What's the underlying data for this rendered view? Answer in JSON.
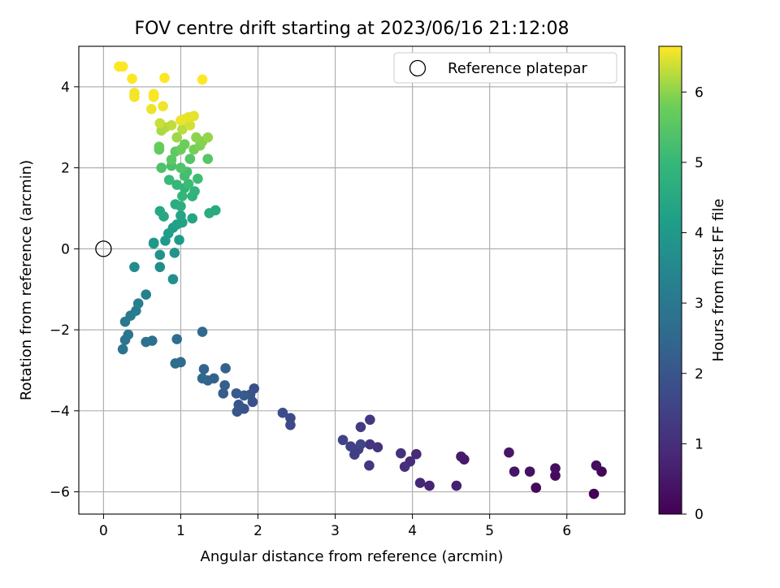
{
  "chart_data": {
    "type": "scatter",
    "title": "FOV centre drift starting at 2023/06/16 21:12:08",
    "xlabel": "Angular distance from reference (arcmin)",
    "ylabel": "Rotation from reference (arcmin)",
    "xlim": [
      -0.32,
      6.75
    ],
    "ylim": [
      -6.55,
      5.0
    ],
    "xticks": [
      0,
      1,
      2,
      3,
      4,
      5,
      6
    ],
    "yticks": [
      -6,
      -4,
      -2,
      0,
      2,
      4
    ],
    "xtick_labels": [
      "0",
      "1",
      "2",
      "3",
      "4",
      "5",
      "6"
    ],
    "ytick_labels": [
      "−6",
      "−4",
      "−2",
      "0",
      "2",
      "4"
    ],
    "grid": true,
    "colormap": "viridis",
    "colorbar": {
      "label": "Hours from first FF file",
      "range": [
        0,
        6.65
      ],
      "ticks": [
        0,
        1,
        2,
        3,
        4,
        5,
        6
      ],
      "tick_labels": [
        "0",
        "1",
        "2",
        "3",
        "4",
        "5",
        "6"
      ]
    },
    "legend": {
      "position": "top-right",
      "entries": [
        {
          "label": "Reference platepar",
          "marker": "open-circle"
        }
      ]
    },
    "reference": {
      "x": 0,
      "y": 0
    },
    "points": [
      {
        "x": 6.35,
        "y": -6.05,
        "c": 0.05
      },
      {
        "x": 5.6,
        "y": -5.9,
        "c": 0.15
      },
      {
        "x": 5.85,
        "y": -5.6,
        "c": 0.2
      },
      {
        "x": 6.45,
        "y": -5.5,
        "c": 0.1
      },
      {
        "x": 6.38,
        "y": -5.35,
        "c": 0.25
      },
      {
        "x": 5.85,
        "y": -5.42,
        "c": 0.3
      },
      {
        "x": 5.52,
        "y": -5.5,
        "c": 0.35
      },
      {
        "x": 5.32,
        "y": -5.5,
        "c": 0.4
      },
      {
        "x": 5.25,
        "y": -5.03,
        "c": 0.45
      },
      {
        "x": 4.67,
        "y": -5.2,
        "c": 0.5
      },
      {
        "x": 4.63,
        "y": -5.13,
        "c": 0.55
      },
      {
        "x": 4.57,
        "y": -5.85,
        "c": 0.65
      },
      {
        "x": 4.22,
        "y": -5.85,
        "c": 0.75
      },
      {
        "x": 4.1,
        "y": -5.78,
        "c": 0.8
      },
      {
        "x": 4.05,
        "y": -5.07,
        "c": 0.9
      },
      {
        "x": 3.97,
        "y": -5.25,
        "c": 0.95
      },
      {
        "x": 3.9,
        "y": -5.38,
        "c": 1.0
      },
      {
        "x": 3.85,
        "y": -5.05,
        "c": 1.05
      },
      {
        "x": 3.55,
        "y": -4.9,
        "c": 1.1
      },
      {
        "x": 3.45,
        "y": -4.83,
        "c": 1.15
      },
      {
        "x": 3.44,
        "y": -5.35,
        "c": 1.2
      },
      {
        "x": 3.45,
        "y": -4.22,
        "c": 1.25
      },
      {
        "x": 3.33,
        "y": -4.4,
        "c": 1.3
      },
      {
        "x": 3.3,
        "y": -4.95,
        "c": 1.35
      },
      {
        "x": 3.25,
        "y": -5.08,
        "c": 1.4
      },
      {
        "x": 3.2,
        "y": -4.88,
        "c": 1.45
      },
      {
        "x": 3.1,
        "y": -4.72,
        "c": 1.5
      },
      {
        "x": 3.33,
        "y": -4.83,
        "c": 1.55
      },
      {
        "x": 2.42,
        "y": -4.35,
        "c": 1.65
      },
      {
        "x": 2.42,
        "y": -4.18,
        "c": 1.7
      },
      {
        "x": 2.32,
        "y": -4.05,
        "c": 1.75
      },
      {
        "x": 1.95,
        "y": -3.45,
        "c": 1.8
      },
      {
        "x": 1.93,
        "y": -3.78,
        "c": 1.85
      },
      {
        "x": 1.9,
        "y": -3.6,
        "c": 1.9
      },
      {
        "x": 1.82,
        "y": -3.95,
        "c": 1.95
      },
      {
        "x": 1.75,
        "y": -3.85,
        "c": 2.0
      },
      {
        "x": 1.73,
        "y": -4.02,
        "c": 2.05
      },
      {
        "x": 1.72,
        "y": -3.57,
        "c": 2.1
      },
      {
        "x": 1.82,
        "y": -3.62,
        "c": 2.15
      },
      {
        "x": 1.55,
        "y": -3.57,
        "c": 2.2
      },
      {
        "x": 1.57,
        "y": -3.37,
        "c": 2.25
      },
      {
        "x": 1.58,
        "y": -2.95,
        "c": 2.3
      },
      {
        "x": 1.43,
        "y": -3.2,
        "c": 2.35
      },
      {
        "x": 1.35,
        "y": -3.25,
        "c": 2.4
      },
      {
        "x": 1.3,
        "y": -2.97,
        "c": 2.45
      },
      {
        "x": 1.28,
        "y": -3.2,
        "c": 2.5
      },
      {
        "x": 1.28,
        "y": -2.05,
        "c": 2.55
      },
      {
        "x": 1.0,
        "y": -2.8,
        "c": 2.6
      },
      {
        "x": 0.93,
        "y": -2.83,
        "c": 2.65
      },
      {
        "x": 0.95,
        "y": -2.23,
        "c": 2.7
      },
      {
        "x": 0.63,
        "y": -2.27,
        "c": 2.75
      },
      {
        "x": 0.55,
        "y": -2.3,
        "c": 2.8
      },
      {
        "x": 0.25,
        "y": -2.48,
        "c": 2.85
      },
      {
        "x": 0.28,
        "y": -2.25,
        "c": 2.9
      },
      {
        "x": 0.32,
        "y": -2.12,
        "c": 2.95
      },
      {
        "x": 0.28,
        "y": -1.8,
        "c": 3.0
      },
      {
        "x": 0.35,
        "y": -1.65,
        "c": 3.05
      },
      {
        "x": 0.42,
        "y": -1.53,
        "c": 3.1
      },
      {
        "x": 0.45,
        "y": -1.35,
        "c": 3.2
      },
      {
        "x": 0.55,
        "y": -1.13,
        "c": 3.3
      },
      {
        "x": 0.4,
        "y": -0.45,
        "c": 3.6
      },
      {
        "x": 0.73,
        "y": -0.45,
        "c": 3.65
      },
      {
        "x": 0.9,
        "y": -0.75,
        "c": 3.7
      },
      {
        "x": 0.73,
        "y": -0.15,
        "c": 3.8
      },
      {
        "x": 0.92,
        "y": -0.1,
        "c": 3.85
      },
      {
        "x": 0.65,
        "y": 0.13,
        "c": 3.95
      },
      {
        "x": 0.65,
        "y": 0.15,
        "c": 4.0
      },
      {
        "x": 0.8,
        "y": 0.2,
        "c": 4.05
      },
      {
        "x": 0.98,
        "y": 0.22,
        "c": 4.1
      },
      {
        "x": 0.84,
        "y": 0.38,
        "c": 4.15
      },
      {
        "x": 0.9,
        "y": 0.52,
        "c": 4.2
      },
      {
        "x": 0.95,
        "y": 0.6,
        "c": 4.25
      },
      {
        "x": 1.02,
        "y": 0.65,
        "c": 4.3
      },
      {
        "x": 1.0,
        "y": 0.82,
        "c": 4.35
      },
      {
        "x": 1.15,
        "y": 0.75,
        "c": 4.4
      },
      {
        "x": 0.73,
        "y": 0.93,
        "c": 4.45
      },
      {
        "x": 0.78,
        "y": 0.8,
        "c": 4.5
      },
      {
        "x": 1.45,
        "y": 0.95,
        "c": 4.55
      },
      {
        "x": 1.37,
        "y": 0.88,
        "c": 4.6
      },
      {
        "x": 0.93,
        "y": 1.1,
        "c": 4.65
      },
      {
        "x": 1.0,
        "y": 1.05,
        "c": 4.7
      },
      {
        "x": 1.15,
        "y": 1.3,
        "c": 4.8
      },
      {
        "x": 1.18,
        "y": 1.42,
        "c": 4.85
      },
      {
        "x": 1.05,
        "y": 1.5,
        "c": 4.9
      },
      {
        "x": 1.02,
        "y": 1.3,
        "c": 4.95
      },
      {
        "x": 0.95,
        "y": 1.58,
        "c": 5.0
      },
      {
        "x": 0.85,
        "y": 1.7,
        "c": 5.05
      },
      {
        "x": 1.1,
        "y": 1.6,
        "c": 5.1
      },
      {
        "x": 1.22,
        "y": 1.73,
        "c": 5.15
      },
      {
        "x": 1.05,
        "y": 1.8,
        "c": 5.2
      },
      {
        "x": 1.08,
        "y": 1.9,
        "c": 5.25
      },
      {
        "x": 0.88,
        "y": 2.05,
        "c": 5.3
      },
      {
        "x": 0.75,
        "y": 2.0,
        "c": 5.35
      },
      {
        "x": 1.0,
        "y": 2.0,
        "c": 5.4
      },
      {
        "x": 1.12,
        "y": 2.22,
        "c": 5.45
      },
      {
        "x": 1.35,
        "y": 2.22,
        "c": 5.5
      },
      {
        "x": 0.88,
        "y": 2.2,
        "c": 5.55
      },
      {
        "x": 0.93,
        "y": 2.4,
        "c": 5.6
      },
      {
        "x": 0.72,
        "y": 2.45,
        "c": 5.65
      },
      {
        "x": 0.72,
        "y": 2.52,
        "c": 5.7
      },
      {
        "x": 1.0,
        "y": 2.45,
        "c": 5.75
      },
      {
        "x": 1.05,
        "y": 2.58,
        "c": 5.8
      },
      {
        "x": 1.17,
        "y": 2.45,
        "c": 5.85
      },
      {
        "x": 1.25,
        "y": 2.55,
        "c": 5.9
      },
      {
        "x": 1.28,
        "y": 2.65,
        "c": 5.95
      },
      {
        "x": 1.2,
        "y": 2.75,
        "c": 6.0
      },
      {
        "x": 1.35,
        "y": 2.75,
        "c": 6.05
      },
      {
        "x": 0.95,
        "y": 2.75,
        "c": 6.1
      },
      {
        "x": 0.75,
        "y": 2.92,
        "c": 6.15
      },
      {
        "x": 0.8,
        "y": 3.0,
        "c": 6.2
      },
      {
        "x": 1.02,
        "y": 2.95,
        "c": 6.25
      },
      {
        "x": 0.88,
        "y": 3.05,
        "c": 6.3
      },
      {
        "x": 0.73,
        "y": 3.1,
        "c": 6.35
      },
      {
        "x": 1.12,
        "y": 3.05,
        "c": 6.4
      },
      {
        "x": 1.05,
        "y": 3.2,
        "c": 6.45
      },
      {
        "x": 1.17,
        "y": 3.28,
        "c": 6.5
      },
      {
        "x": 1.1,
        "y": 3.25,
        "c": 6.52
      },
      {
        "x": 1.0,
        "y": 3.17,
        "c": 6.55
      },
      {
        "x": 0.62,
        "y": 3.45,
        "c": 6.55
      },
      {
        "x": 0.77,
        "y": 3.52,
        "c": 6.57
      },
      {
        "x": 0.4,
        "y": 3.75,
        "c": 6.6
      },
      {
        "x": 0.4,
        "y": 3.85,
        "c": 6.6
      },
      {
        "x": 0.65,
        "y": 3.75,
        "c": 6.62
      },
      {
        "x": 0.65,
        "y": 3.82,
        "c": 6.63
      },
      {
        "x": 0.37,
        "y": 4.2,
        "c": 6.64
      },
      {
        "x": 0.79,
        "y": 4.22,
        "c": 6.65
      },
      {
        "x": 1.28,
        "y": 4.18,
        "c": 6.65
      },
      {
        "x": 0.2,
        "y": 4.5,
        "c": 6.65
      },
      {
        "x": 0.25,
        "y": 4.5,
        "c": 6.65
      }
    ]
  }
}
